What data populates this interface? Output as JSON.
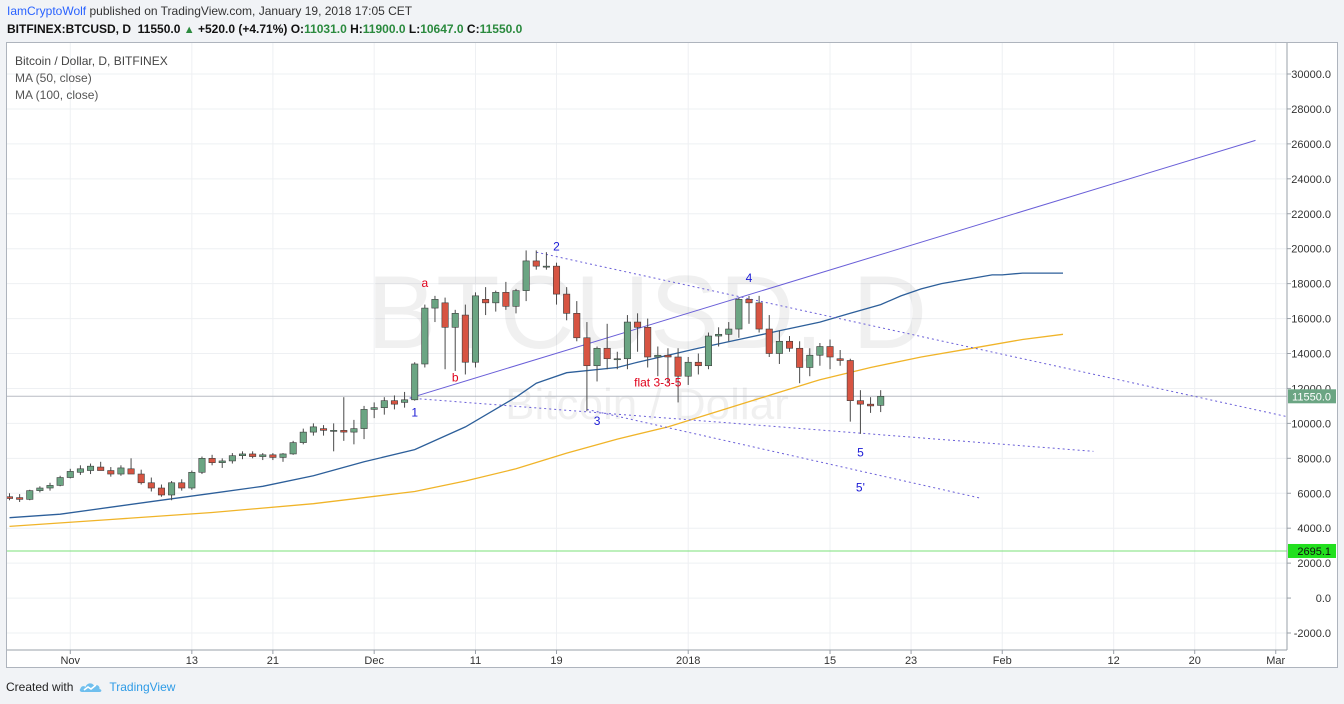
{
  "header": {
    "author": "IamCryptoWolf",
    "published": "published on TradingView.com, January 19, 2018 17:05 CET",
    "symbol": "BITFINEX:BTCUSD, D",
    "last": "11550.0",
    "change": "+520.0 (+4.71%)",
    "o_label": "O:",
    "o": "11031.0",
    "h_label": "H:",
    "h": "11900.0",
    "l_label": "L:",
    "l": "10647.0",
    "c_label": "C:",
    "c": "11550.0"
  },
  "legend": {
    "title": "Bitcoin / Dollar, D, BITFINEX",
    "ma50": "MA (50, close)",
    "ma100": "MA (100, close)"
  },
  "watermark": {
    "big": "BTCUSD, D",
    "small": "Bitcoin / Dollar"
  },
  "footer": {
    "created_with": "Created with",
    "brand": "TradingView"
  },
  "colors": {
    "up": "#6ba583",
    "down": "#d75442",
    "ma50": "#2d5f9a",
    "ma100": "#f0b429",
    "trend": "#6a5fd8",
    "label_red": "#e0001a",
    "label_blue": "#1a1ad6",
    "price_badge": "#6ba583",
    "hline_badge": "#22e01e"
  },
  "chart_data": {
    "type": "candlestick",
    "ylim": [
      -2600,
      31500
    ],
    "y_ticks": [
      "30000.0",
      "28000.0",
      "26000.0",
      "24000.0",
      "22000.0",
      "20000.0",
      "18000.0",
      "16000.0",
      "14000.0",
      "12000.0",
      "10000.0",
      "8000.0",
      "6000.0",
      "4000.0",
      "2000.0",
      "0.0",
      "-2000.0"
    ],
    "x_ticks": [
      {
        "label": "Nov",
        "i": 6
      },
      {
        "label": "13",
        "i": 18
      },
      {
        "label": "21",
        "i": 26
      },
      {
        "label": "Dec",
        "i": 36
      },
      {
        "label": "11",
        "i": 46
      },
      {
        "label": "19",
        "i": 54
      },
      {
        "label": "2018",
        "i": 67
      },
      {
        "label": "15",
        "i": 81
      },
      {
        "label": "23",
        "i": 89
      },
      {
        "label": "Feb",
        "i": 98
      },
      {
        "label": "12",
        "i": 109
      },
      {
        "label": "20",
        "i": 117
      },
      {
        "label": "Mar",
        "i": 125
      }
    ],
    "last_price": 11550.0,
    "horizontal_level": 2695.1,
    "candles": [
      [
        5800,
        6000,
        5600,
        5700
      ],
      [
        5750,
        5950,
        5500,
        5650
      ],
      [
        5650,
        6200,
        5600,
        6150
      ],
      [
        6150,
        6400,
        6050,
        6300
      ],
      [
        6300,
        6600,
        6150,
        6450
      ],
      [
        6450,
        7000,
        6400,
        6900
      ],
      [
        6900,
        7400,
        6850,
        7250
      ],
      [
        7200,
        7600,
        7050,
        7400
      ],
      [
        7300,
        7700,
        7100,
        7550
      ],
      [
        7500,
        7800,
        7350,
        7300
      ],
      [
        7300,
        7500,
        6950,
        7100
      ],
      [
        7100,
        7600,
        7000,
        7450
      ],
      [
        7400,
        8000,
        7300,
        7100
      ],
      [
        7100,
        7350,
        6500,
        6600
      ],
      [
        6600,
        6900,
        6100,
        6300
      ],
      [
        6300,
        6500,
        5800,
        5900
      ],
      [
        5900,
        6700,
        5600,
        6600
      ],
      [
        6600,
        6800,
        6150,
        6300
      ],
      [
        6300,
        7300,
        6200,
        7200
      ],
      [
        7200,
        8100,
        7100,
        8000
      ],
      [
        8000,
        8200,
        7600,
        7750
      ],
      [
        7750,
        8000,
        7450,
        7850
      ],
      [
        7850,
        8300,
        7700,
        8150
      ],
      [
        8150,
        8400,
        7950,
        8250
      ],
      [
        8250,
        8400,
        8000,
        8100
      ],
      [
        8100,
        8300,
        7900,
        8200
      ],
      [
        8200,
        8300,
        7900,
        8050
      ],
      [
        8050,
        8300,
        7800,
        8250
      ],
      [
        8250,
        9000,
        8200,
        8900
      ],
      [
        8900,
        9700,
        8800,
        9500
      ],
      [
        9500,
        10000,
        9300,
        9800
      ],
      [
        9700,
        9900,
        9300,
        9600
      ],
      [
        9600,
        10000,
        8400,
        9600
      ],
      [
        9600,
        11500,
        9000,
        9500
      ],
      [
        9500,
        10200,
        8800,
        9700
      ],
      [
        9700,
        11000,
        9100,
        10800
      ],
      [
        10800,
        11200,
        10300,
        10900
      ],
      [
        10900,
        11500,
        10500,
        11300
      ],
      [
        11300,
        11600,
        10800,
        11100
      ],
      [
        11200,
        11800,
        10900,
        11350
      ],
      [
        11350,
        13500,
        11300,
        13400
      ],
      [
        13400,
        16800,
        13200,
        16600
      ],
      [
        16600,
        17300,
        15800,
        17100
      ],
      [
        16900,
        17200,
        13100,
        15500
      ],
      [
        15500,
        16500,
        13000,
        16300
      ],
      [
        16200,
        16800,
        12800,
        13500
      ],
      [
        13500,
        17500,
        13200,
        17300
      ],
      [
        17100,
        17800,
        16200,
        16900
      ],
      [
        16900,
        17600,
        16400,
        17500
      ],
      [
        17500,
        18100,
        16500,
        16700
      ],
      [
        16700,
        17700,
        16300,
        17600
      ],
      [
        17600,
        19900,
        17000,
        19300
      ],
      [
        19300,
        19900,
        18800,
        19000
      ],
      [
        19000,
        19800,
        18800,
        19000
      ],
      [
        19000,
        19200,
        16800,
        17400
      ],
      [
        17400,
        17800,
        15900,
        16300
      ],
      [
        16300,
        17000,
        14700,
        14900
      ],
      [
        14900,
        15800,
        10700,
        13300
      ],
      [
        13300,
        14400,
        12400,
        14300
      ],
      [
        14300,
        15700,
        13100,
        13700
      ],
      [
        13700,
        14100,
        13100,
        13700
      ],
      [
        13700,
        16200,
        13100,
        15800
      ],
      [
        15800,
        16300,
        14100,
        15500
      ],
      [
        15500,
        16000,
        13200,
        13800
      ],
      [
        13800,
        14400,
        12700,
        13900
      ],
      [
        13900,
        14300,
        12300,
        13800
      ],
      [
        13800,
        14300,
        11200,
        12700
      ],
      [
        12700,
        13800,
        12200,
        13500
      ],
      [
        13500,
        14000,
        12800,
        13300
      ],
      [
        13300,
        15200,
        13100,
        15000
      ],
      [
        15000,
        15500,
        14400,
        15100
      ],
      [
        15100,
        15800,
        14700,
        15400
      ],
      [
        15400,
        17200,
        14900,
        17100
      ],
      [
        17100,
        17300,
        15700,
        16900
      ],
      [
        16900,
        17300,
        15200,
        15400
      ],
      [
        15400,
        16200,
        13800,
        14000
      ],
      [
        14000,
        15300,
        13400,
        14700
      ],
      [
        14700,
        15000,
        14100,
        14300
      ],
      [
        14300,
        14700,
        12300,
        13200
      ],
      [
        13200,
        14300,
        12700,
        13900
      ],
      [
        13900,
        14600,
        13300,
        14400
      ],
      [
        14400,
        14800,
        13100,
        13800
      ],
      [
        13700,
        14200,
        13300,
        13600
      ],
      [
        13600,
        13700,
        10100,
        11300
      ],
      [
        11300,
        11900,
        9400,
        11100
      ],
      [
        11100,
        11500,
        10600,
        11000
      ],
      [
        11031,
        11900,
        10647,
        11550
      ]
    ],
    "ma50": [
      [
        0,
        4600
      ],
      [
        5,
        4800
      ],
      [
        10,
        5200
      ],
      [
        15,
        5600
      ],
      [
        20,
        6000
      ],
      [
        25,
        6400
      ],
      [
        30,
        7000
      ],
      [
        35,
        7800
      ],
      [
        40,
        8500
      ],
      [
        45,
        9800
      ],
      [
        50,
        11500
      ],
      [
        52,
        12300
      ],
      [
        55,
        12900
      ],
      [
        60,
        13200
      ],
      [
        62,
        13500
      ],
      [
        65,
        13900
      ],
      [
        68,
        14300
      ],
      [
        72,
        14800
      ],
      [
        76,
        15300
      ],
      [
        80,
        15800
      ],
      [
        83,
        16300
      ],
      [
        86,
        16800
      ],
      [
        88,
        17300
      ],
      [
        90,
        17700
      ],
      [
        92,
        18000
      ],
      [
        94,
        18200
      ],
      [
        96,
        18400
      ],
      [
        97,
        18500
      ],
      [
        98,
        18500
      ],
      [
        100,
        18600
      ],
      [
        104,
        18600
      ]
    ],
    "ma100": [
      [
        0,
        4100
      ],
      [
        10,
        4500
      ],
      [
        20,
        4900
      ],
      [
        30,
        5400
      ],
      [
        40,
        6100
      ],
      [
        45,
        6700
      ],
      [
        50,
        7400
      ],
      [
        55,
        8300
      ],
      [
        60,
        9100
      ],
      [
        65,
        9800
      ],
      [
        70,
        10700
      ],
      [
        75,
        11600
      ],
      [
        80,
        12500
      ],
      [
        85,
        13200
      ],
      [
        90,
        13800
      ],
      [
        95,
        14300
      ],
      [
        100,
        14800
      ],
      [
        104,
        15100
      ]
    ],
    "annotations": [
      {
        "text": "a",
        "i": 41,
        "price": 17800,
        "color": "red"
      },
      {
        "text": "b",
        "i": 44,
        "price": 12400,
        "color": "red"
      },
      {
        "text": "1",
        "i": 40,
        "price": 10400,
        "color": "blue"
      },
      {
        "text": "2",
        "i": 54,
        "price": 19900,
        "color": "blue"
      },
      {
        "text": "3",
        "i": 58,
        "price": 9900,
        "color": "blue"
      },
      {
        "text": "4",
        "i": 73,
        "price": 18100,
        "color": "blue"
      },
      {
        "text": "flat 3-3-5",
        "i": 64,
        "price": 12100,
        "color": "red"
      },
      {
        "text": "5",
        "i": 84,
        "price": 8100,
        "color": "blue"
      },
      {
        "text": "5'",
        "i": 84,
        "price": 6100,
        "color": "blue"
      }
    ]
  }
}
